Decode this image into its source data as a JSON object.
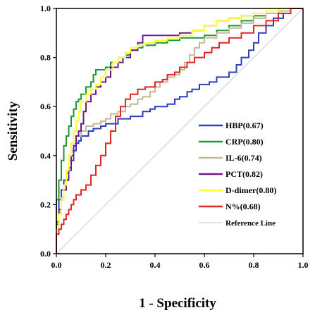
{
  "chart_data": {
    "type": "line",
    "title": "",
    "xlabel": "1 - Specificity",
    "ylabel": "Sensitivity",
    "xlim": [
      0,
      1
    ],
    "ylim": [
      0,
      1
    ],
    "xticks": [
      "0.0",
      "0.2",
      "0.4",
      "0.6",
      "0.8",
      "1.0"
    ],
    "yticks": [
      "0.0",
      "0.2",
      "0.4",
      "0.6",
      "0.8",
      "1.0"
    ],
    "grid": false,
    "legend_position": "bottom-right",
    "series": [
      {
        "name": "HBP(0.67)",
        "color": "#2b3fbf",
        "points": [
          [
            0,
            0
          ],
          [
            0,
            0.05
          ],
          [
            0.01,
            0.12
          ],
          [
            0.02,
            0.22
          ],
          [
            0.03,
            0.26
          ],
          [
            0.05,
            0.3
          ],
          [
            0.06,
            0.34
          ],
          [
            0.07,
            0.38
          ],
          [
            0.08,
            0.42
          ],
          [
            0.09,
            0.45
          ],
          [
            0.1,
            0.46
          ],
          [
            0.11,
            0.48
          ],
          [
            0.13,
            0.48
          ],
          [
            0.15,
            0.5
          ],
          [
            0.18,
            0.51
          ],
          [
            0.2,
            0.52
          ],
          [
            0.25,
            0.53
          ],
          [
            0.3,
            0.55
          ],
          [
            0.35,
            0.56
          ],
          [
            0.38,
            0.58
          ],
          [
            0.4,
            0.59
          ],
          [
            0.45,
            0.6
          ],
          [
            0.48,
            0.61
          ],
          [
            0.5,
            0.63
          ],
          [
            0.53,
            0.64
          ],
          [
            0.55,
            0.66
          ],
          [
            0.58,
            0.67
          ],
          [
            0.62,
            0.69
          ],
          [
            0.65,
            0.7
          ],
          [
            0.7,
            0.72
          ],
          [
            0.73,
            0.74
          ],
          [
            0.75,
            0.77
          ],
          [
            0.78,
            0.8
          ],
          [
            0.8,
            0.83
          ],
          [
            0.82,
            0.86
          ],
          [
            0.85,
            0.9
          ],
          [
            0.88,
            0.93
          ],
          [
            0.92,
            0.96
          ],
          [
            0.95,
            0.98
          ],
          [
            0.98,
            1.0
          ],
          [
            1,
            1
          ]
        ]
      },
      {
        "name": "CRP(0.80)",
        "color": "#1c9a2e",
        "points": [
          [
            0,
            0
          ],
          [
            0,
            0.1
          ],
          [
            0.01,
            0.22
          ],
          [
            0.02,
            0.3
          ],
          [
            0.03,
            0.38
          ],
          [
            0.04,
            0.44
          ],
          [
            0.05,
            0.48
          ],
          [
            0.06,
            0.52
          ],
          [
            0.07,
            0.56
          ],
          [
            0.08,
            0.59
          ],
          [
            0.09,
            0.62
          ],
          [
            0.1,
            0.63
          ],
          [
            0.12,
            0.65
          ],
          [
            0.14,
            0.68
          ],
          [
            0.15,
            0.7
          ],
          [
            0.16,
            0.73
          ],
          [
            0.18,
            0.75
          ],
          [
            0.2,
            0.75
          ],
          [
            0.22,
            0.76
          ],
          [
            0.25,
            0.78
          ],
          [
            0.28,
            0.8
          ],
          [
            0.3,
            0.81
          ],
          [
            0.33,
            0.83
          ],
          [
            0.35,
            0.84
          ],
          [
            0.4,
            0.85
          ],
          [
            0.45,
            0.86
          ],
          [
            0.5,
            0.87
          ],
          [
            0.55,
            0.88
          ],
          [
            0.6,
            0.88
          ],
          [
            0.65,
            0.89
          ],
          [
            0.7,
            0.91
          ],
          [
            0.75,
            0.93
          ],
          [
            0.8,
            0.95
          ],
          [
            0.85,
            0.97
          ],
          [
            0.9,
            0.98
          ],
          [
            0.95,
            0.99
          ],
          [
            1,
            1
          ]
        ]
      },
      {
        "name": "IL-6(0.74)",
        "color": "#c8b89a",
        "points": [
          [
            0,
            0
          ],
          [
            0,
            0.05
          ],
          [
            0.01,
            0.1
          ],
          [
            0.02,
            0.17
          ],
          [
            0.03,
            0.23
          ],
          [
            0.04,
            0.28
          ],
          [
            0.05,
            0.33
          ],
          [
            0.06,
            0.38
          ],
          [
            0.07,
            0.42
          ],
          [
            0.08,
            0.45
          ],
          [
            0.1,
            0.48
          ],
          [
            0.12,
            0.5
          ],
          [
            0.15,
            0.52
          ],
          [
            0.18,
            0.53
          ],
          [
            0.2,
            0.54
          ],
          [
            0.22,
            0.55
          ],
          [
            0.25,
            0.57
          ],
          [
            0.28,
            0.58
          ],
          [
            0.3,
            0.6
          ],
          [
            0.33,
            0.61
          ],
          [
            0.35,
            0.63
          ],
          [
            0.38,
            0.64
          ],
          [
            0.4,
            0.66
          ],
          [
            0.42,
            0.68
          ],
          [
            0.45,
            0.7
          ],
          [
            0.48,
            0.72
          ],
          [
            0.5,
            0.73
          ],
          [
            0.52,
            0.75
          ],
          [
            0.54,
            0.78
          ],
          [
            0.56,
            0.81
          ],
          [
            0.58,
            0.84
          ],
          [
            0.6,
            0.86
          ],
          [
            0.65,
            0.88
          ],
          [
            0.7,
            0.9
          ],
          [
            0.75,
            0.92
          ],
          [
            0.8,
            0.94
          ],
          [
            0.85,
            0.96
          ],
          [
            0.9,
            0.98
          ],
          [
            0.95,
            0.99
          ],
          [
            1,
            1
          ]
        ]
      },
      {
        "name": "PCT(0.82)",
        "color": "#6a1b8a",
        "points": [
          [
            0,
            0
          ],
          [
            0,
            0.06
          ],
          [
            0.01,
            0.13
          ],
          [
            0.02,
            0.18
          ],
          [
            0.03,
            0.22
          ],
          [
            0.04,
            0.26
          ],
          [
            0.05,
            0.3
          ],
          [
            0.06,
            0.35
          ],
          [
            0.07,
            0.4
          ],
          [
            0.08,
            0.44
          ],
          [
            0.09,
            0.48
          ],
          [
            0.1,
            0.5
          ],
          [
            0.11,
            0.53
          ],
          [
            0.12,
            0.58
          ],
          [
            0.14,
            0.62
          ],
          [
            0.16,
            0.65
          ],
          [
            0.18,
            0.68
          ],
          [
            0.2,
            0.7
          ],
          [
            0.22,
            0.72
          ],
          [
            0.25,
            0.76
          ],
          [
            0.27,
            0.78
          ],
          [
            0.3,
            0.8
          ],
          [
            0.33,
            0.83
          ],
          [
            0.35,
            0.86
          ],
          [
            0.38,
            0.89
          ],
          [
            0.4,
            0.89
          ],
          [
            0.45,
            0.89
          ],
          [
            0.5,
            0.89
          ],
          [
            0.55,
            0.9
          ],
          [
            0.6,
            0.91
          ],
          [
            0.65,
            0.93
          ],
          [
            0.7,
            0.95
          ],
          [
            0.75,
            0.96
          ],
          [
            0.8,
            0.97
          ],
          [
            0.85,
            0.98
          ],
          [
            0.9,
            0.99
          ],
          [
            0.95,
            1.0
          ],
          [
            1,
            1
          ]
        ]
      },
      {
        "name": "D-dimer(0.80)",
        "color": "#ffff33",
        "points": [
          [
            0,
            0
          ],
          [
            0,
            0.04
          ],
          [
            0.01,
            0.1
          ],
          [
            0.02,
            0.16
          ],
          [
            0.03,
            0.22
          ],
          [
            0.04,
            0.28
          ],
          [
            0.05,
            0.34
          ],
          [
            0.06,
            0.4
          ],
          [
            0.07,
            0.45
          ],
          [
            0.08,
            0.5
          ],
          [
            0.09,
            0.54
          ],
          [
            0.1,
            0.58
          ],
          [
            0.12,
            0.62
          ],
          [
            0.14,
            0.65
          ],
          [
            0.16,
            0.67
          ],
          [
            0.18,
            0.69
          ],
          [
            0.2,
            0.72
          ],
          [
            0.23,
            0.75
          ],
          [
            0.25,
            0.78
          ],
          [
            0.28,
            0.8
          ],
          [
            0.3,
            0.82
          ],
          [
            0.33,
            0.84
          ],
          [
            0.36,
            0.85
          ],
          [
            0.4,
            0.86
          ],
          [
            0.45,
            0.87
          ],
          [
            0.5,
            0.88
          ],
          [
            0.55,
            0.89
          ],
          [
            0.6,
            0.91
          ],
          [
            0.65,
            0.93
          ],
          [
            0.7,
            0.95
          ],
          [
            0.75,
            0.96
          ],
          [
            0.8,
            0.97
          ],
          [
            0.85,
            0.98
          ],
          [
            0.9,
            0.99
          ],
          [
            0.95,
            1.0
          ],
          [
            1,
            1
          ]
        ]
      },
      {
        "name": "N%(0.68)",
        "color": "#e02525",
        "points": [
          [
            0,
            0
          ],
          [
            0,
            0.05
          ],
          [
            0.01,
            0.08
          ],
          [
            0.02,
            0.1
          ],
          [
            0.03,
            0.12
          ],
          [
            0.04,
            0.14
          ],
          [
            0.05,
            0.16
          ],
          [
            0.06,
            0.18
          ],
          [
            0.07,
            0.2
          ],
          [
            0.08,
            0.22
          ],
          [
            0.1,
            0.24
          ],
          [
            0.12,
            0.26
          ],
          [
            0.14,
            0.28
          ],
          [
            0.16,
            0.32
          ],
          [
            0.18,
            0.36
          ],
          [
            0.2,
            0.4
          ],
          [
            0.22,
            0.45
          ],
          [
            0.24,
            0.5
          ],
          [
            0.26,
            0.56
          ],
          [
            0.28,
            0.6
          ],
          [
            0.3,
            0.63
          ],
          [
            0.33,
            0.65
          ],
          [
            0.36,
            0.67
          ],
          [
            0.4,
            0.68
          ],
          [
            0.43,
            0.7
          ],
          [
            0.45,
            0.71
          ],
          [
            0.48,
            0.73
          ],
          [
            0.5,
            0.74
          ],
          [
            0.53,
            0.76
          ],
          [
            0.56,
            0.78
          ],
          [
            0.6,
            0.8
          ],
          [
            0.63,
            0.82
          ],
          [
            0.66,
            0.84
          ],
          [
            0.7,
            0.86
          ],
          [
            0.75,
            0.88
          ],
          [
            0.8,
            0.9
          ],
          [
            0.85,
            0.93
          ],
          [
            0.9,
            0.95
          ],
          [
            0.95,
            0.98
          ],
          [
            1,
            1
          ]
        ]
      },
      {
        "name": "Reference Line",
        "color": "#cccccc",
        "points": [
          [
            0,
            0
          ],
          [
            1,
            1
          ]
        ]
      }
    ]
  }
}
